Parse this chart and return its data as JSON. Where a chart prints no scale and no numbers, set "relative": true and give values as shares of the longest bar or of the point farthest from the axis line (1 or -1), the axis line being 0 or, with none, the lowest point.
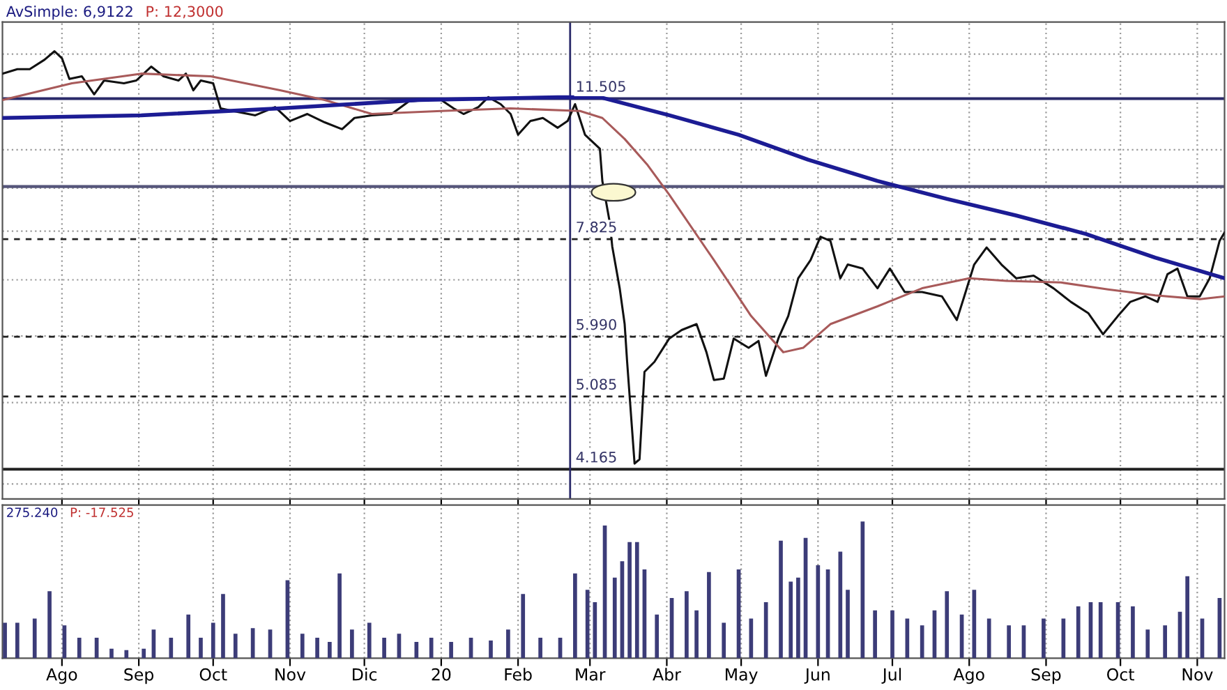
{
  "chart_data": [
    {
      "type": "line",
      "log": "y",
      "grid": true,
      "tick_labels": false,
      "annotations": [
        "AvSimple: 6,9122",
        "P: 12,3000"
      ],
      "xlim": [
        "2019-07-08",
        "2020-11-12"
      ],
      "ylim": [
        3.84,
        14.19
      ],
      "xticks": [
        {
          "value": "2019-08-01",
          "label": null
        },
        {
          "value": "2019-09-01",
          "label": null
        },
        {
          "value": "2019-10-01",
          "label": null
        },
        {
          "value": "2019-11-01",
          "label": null
        },
        {
          "value": "2019-12-01",
          "label": null
        },
        {
          "value": "2020-01-01",
          "label": null
        },
        {
          "value": "2020-02-01",
          "label": null
        },
        {
          "value": "2020-03-01",
          "label": null
        },
        {
          "value": "2020-04-01",
          "label": null
        },
        {
          "value": "2020-05-01",
          "label": null
        },
        {
          "value": "2020-06-01",
          "label": null
        },
        {
          "value": "2020-07-01",
          "label": null
        },
        {
          "value": "2020-08-01",
          "label": null
        },
        {
          "value": "2020-09-01",
          "label": null
        },
        {
          "value": "2020-10-01",
          "label": null
        },
        {
          "value": "2020-11-01",
          "label": null
        }
      ],
      "yticks": [
        {
          "value": 4,
          "label": null
        },
        {
          "value": 5,
          "label": null
        },
        {
          "value": 6,
          "label": null
        },
        {
          "value": 7,
          "label": null
        },
        {
          "value": 8,
          "label": null
        },
        {
          "value": 9,
          "label": null
        },
        {
          "value": 10,
          "label": null
        },
        {
          "value": 11.5,
          "label": null
        },
        {
          "value": 13,
          "label": null
        }
      ],
      "ref_lines": [
        {
          "axis": "y",
          "value": 11.505,
          "label": "11.505",
          "color": "#2a2a6a",
          "line_style": "solid"
        },
        {
          "axis": "y",
          "value": 9.04,
          "color": "#55557a",
          "line_style": "solid"
        },
        {
          "axis": "y",
          "value": 7.825,
          "label": "7.825",
          "color": "#222222",
          "line_style": "dashed"
        },
        {
          "axis": "y",
          "value": 5.99,
          "label": "5.990",
          "color": "#222222",
          "line_style": "dashed"
        },
        {
          "axis": "y",
          "value": 5.085,
          "label": "5.085",
          "color": "#222222",
          "line_style": "dashed"
        },
        {
          "axis": "y",
          "value": 4.165,
          "label": "4.165",
          "color": "#222222",
          "line_style": "solid"
        },
        {
          "axis": "x",
          "value": "2020-02-22",
          "color": "#2a2a6a",
          "line_style": "solid"
        }
      ],
      "series": [
        {
          "color": "#111111",
          "x": [
            "2019-07-08",
            "2019-07-14",
            "2019-07-19",
            "2019-07-25",
            "2019-07-29",
            "2019-08-01",
            "2019-08-04",
            "2019-08-09",
            "2019-08-14",
            "2019-08-18",
            "2019-08-26",
            "2019-08-31",
            "2019-09-06",
            "2019-09-11",
            "2019-09-17",
            "2019-09-20",
            "2019-09-23",
            "2019-09-26",
            "2019-10-01",
            "2019-10-04",
            "2019-10-09",
            "2019-10-18",
            "2019-10-26",
            "2019-11-01",
            "2019-11-08",
            "2019-11-15",
            "2019-11-22",
            "2019-11-27",
            "2019-12-04",
            "2019-12-12",
            "2019-12-19",
            "2019-12-27",
            "2020-01-01",
            "2020-01-06",
            "2020-01-10",
            "2020-01-16",
            "2020-01-20",
            "2020-01-25",
            "2020-01-29",
            "2020-02-01",
            "2020-02-06",
            "2020-02-11",
            "2020-02-17",
            "2020-02-21",
            "2020-02-24",
            "2020-02-28",
            "2020-03-05",
            "2020-03-06",
            "2020-03-09",
            "2020-03-10",
            "2020-03-13",
            "2020-03-15",
            "2020-03-16",
            "2020-03-19",
            "2020-03-21",
            "2020-03-23",
            "2020-03-27",
            "2020-04-02",
            "2020-04-07",
            "2020-04-13",
            "2020-04-17",
            "2020-04-20",
            "2020-04-24",
            "2020-04-28",
            "2020-05-04",
            "2020-05-08",
            "2020-05-11",
            "2020-05-16",
            "2020-05-20",
            "2020-05-24",
            "2020-05-29",
            "2020-06-02",
            "2020-06-06",
            "2020-06-10",
            "2020-06-13",
            "2020-06-19",
            "2020-06-25",
            "2020-06-30",
            "2020-07-06",
            "2020-07-13",
            "2020-07-21",
            "2020-07-27",
            "2020-07-30",
            "2020-08-03",
            "2020-08-08",
            "2020-08-14",
            "2020-08-20",
            "2020-08-27",
            "2020-09-04",
            "2020-09-11",
            "2020-09-18",
            "2020-09-24",
            "2020-09-30",
            "2020-10-05",
            "2020-10-11",
            "2020-10-16",
            "2020-10-20",
            "2020-10-24",
            "2020-10-28",
            "2020-11-02",
            "2020-11-06",
            "2020-11-10",
            "2020-11-12"
          ],
          "values": [
            12.32,
            12.47,
            12.47,
            12.8,
            13.1,
            12.85,
            12.14,
            12.23,
            11.64,
            12.09,
            12.0,
            12.09,
            12.56,
            12.23,
            12.09,
            12.32,
            11.77,
            12.09,
            12.0,
            11.2,
            11.12,
            10.99,
            11.24,
            10.82,
            11.03,
            10.78,
            10.58,
            10.91,
            10.99,
            11.03,
            11.42,
            11.46,
            11.46,
            11.2,
            11.03,
            11.24,
            11.55,
            11.33,
            11.03,
            10.42,
            10.82,
            10.91,
            10.62,
            10.82,
            11.33,
            10.42,
            10.03,
            9.18,
            8.19,
            7.67,
            6.84,
            6.2,
            5.59,
            4.23,
            4.28,
            5.44,
            5.59,
            5.96,
            6.1,
            6.2,
            5.74,
            5.32,
            5.34,
            5.96,
            5.81,
            5.92,
            5.38,
            5.96,
            6.34,
            7.03,
            7.39,
            7.88,
            7.79,
            7.03,
            7.3,
            7.22,
            6.84,
            7.22,
            6.77,
            6.77,
            6.69,
            6.27,
            6.69,
            7.3,
            7.65,
            7.3,
            7.03,
            7.08,
            6.84,
            6.59,
            6.39,
            6.03,
            6.34,
            6.59,
            6.69,
            6.59,
            7.11,
            7.22,
            6.69,
            6.69,
            7.03,
            7.79,
            7.97
          ]
        },
        {
          "color": "#a85a5a",
          "x": [
            "2019-07-08",
            "2019-08-05",
            "2019-09-02",
            "2019-09-30",
            "2019-10-28",
            "2019-11-15",
            "2019-12-04",
            "2020-01-01",
            "2020-01-29",
            "2020-02-26",
            "2020-03-06",
            "2020-03-15",
            "2020-03-24",
            "2020-04-02",
            "2020-04-20",
            "2020-05-05",
            "2020-05-18",
            "2020-05-26",
            "2020-06-06",
            "2020-06-25",
            "2020-07-13",
            "2020-08-01",
            "2020-08-16",
            "2020-09-07",
            "2020-09-26",
            "2020-10-15",
            "2020-11-02",
            "2020-11-12"
          ],
          "values": [
            11.46,
            12.0,
            12.32,
            12.23,
            11.77,
            11.46,
            11.03,
            11.12,
            11.2,
            11.12,
            10.91,
            10.3,
            9.61,
            8.84,
            7.39,
            6.34,
            5.74,
            5.81,
            6.2,
            6.51,
            6.84,
            7.03,
            6.98,
            6.95,
            6.82,
            6.71,
            6.64,
            6.69
          ]
        },
        {
          "color": "#1c1c94",
          "x": [
            "2019-07-08",
            "2019-09-02",
            "2019-10-28",
            "2019-12-23",
            "2020-02-17",
            "2020-03-05",
            "2020-04-02",
            "2020-04-30",
            "2020-05-28",
            "2020-06-25",
            "2020-07-23",
            "2020-08-20",
            "2020-09-17",
            "2020-10-15",
            "2020-11-12"
          ],
          "values": [
            10.91,
            10.99,
            11.2,
            11.46,
            11.55,
            11.55,
            10.99,
            10.42,
            9.73,
            9.18,
            8.74,
            8.35,
            7.94,
            7.44,
            7.03
          ]
        }
      ]
    },
    {
      "type": "bar",
      "relative": true,
      "grid": "x",
      "color": "#3c3c78",
      "annotations": [
        "275.240",
        "P: -17.525"
      ],
      "xlim": [
        "2019-07-08",
        "2020-11-12"
      ],
      "xticks": [
        {
          "value": "2019-08-01",
          "label": "Ago"
        },
        {
          "value": "2019-09-01",
          "label": "Sep"
        },
        {
          "value": "2019-10-01",
          "label": "Oct"
        },
        {
          "value": "2019-11-01",
          "label": "Nov"
        },
        {
          "value": "2019-12-01",
          "label": "Dic"
        },
        {
          "value": "2020-01-01",
          "label": "20"
        },
        {
          "value": "2020-02-01",
          "label": "Feb"
        },
        {
          "value": "2020-03-01",
          "label": "Mar"
        },
        {
          "value": "2020-04-01",
          "label": "Abr"
        },
        {
          "value": "2020-05-01",
          "label": "May"
        },
        {
          "value": "2020-06-01",
          "label": "Jun"
        },
        {
          "value": "2020-07-01",
          "label": "Jul"
        },
        {
          "value": "2020-08-01",
          "label": "Ago"
        },
        {
          "value": "2020-09-01",
          "label": "Sep"
        },
        {
          "value": "2020-10-01",
          "label": "Oct"
        },
        {
          "value": "2020-11-01",
          "label": "Nov"
        }
      ],
      "x": [
        "2019-07-09",
        "2019-07-14",
        "2019-07-21",
        "2019-07-27",
        "2019-08-02",
        "2019-08-08",
        "2019-08-15",
        "2019-08-21",
        "2019-08-27",
        "2019-09-03",
        "2019-09-07",
        "2019-09-14",
        "2019-09-21",
        "2019-09-26",
        "2019-10-01",
        "2019-10-05",
        "2019-10-10",
        "2019-10-17",
        "2019-10-24",
        "2019-10-31",
        "2019-11-06",
        "2019-11-12",
        "2019-11-17",
        "2019-11-21",
        "2019-11-26",
        "2019-12-03",
        "2019-12-09",
        "2019-12-15",
        "2019-12-22",
        "2019-12-28",
        "2020-01-05",
        "2020-01-13",
        "2020-01-21",
        "2020-01-28",
        "2020-02-03",
        "2020-02-10",
        "2020-02-18",
        "2020-02-24",
        "2020-02-29",
        "2020-03-03",
        "2020-03-07",
        "2020-03-11",
        "2020-03-14",
        "2020-03-17",
        "2020-03-20",
        "2020-03-23",
        "2020-03-28",
        "2020-04-03",
        "2020-04-09",
        "2020-04-13",
        "2020-04-18",
        "2020-04-24",
        "2020-04-30",
        "2020-05-05",
        "2020-05-11",
        "2020-05-17",
        "2020-05-21",
        "2020-05-24",
        "2020-05-27",
        "2020-06-01",
        "2020-06-05",
        "2020-06-10",
        "2020-06-13",
        "2020-06-19",
        "2020-06-24",
        "2020-07-01",
        "2020-07-07",
        "2020-07-13",
        "2020-07-18",
        "2020-07-23",
        "2020-07-29",
        "2020-08-03",
        "2020-08-09",
        "2020-08-17",
        "2020-08-23",
        "2020-08-31",
        "2020-09-08",
        "2020-09-14",
        "2020-09-19",
        "2020-09-23",
        "2020-09-30",
        "2020-10-06",
        "2020-10-12",
        "2020-10-19",
        "2020-10-25",
        "2020-10-28",
        "2020-11-03",
        "2020-11-10"
      ],
      "values": [
        0.26,
        0.26,
        0.29,
        0.49,
        0.24,
        0.15,
        0.15,
        0.07,
        0.06,
        0.07,
        0.21,
        0.15,
        0.32,
        0.15,
        0.26,
        0.47,
        0.18,
        0.22,
        0.21,
        0.57,
        0.18,
        0.15,
        0.12,
        0.62,
        0.21,
        0.26,
        0.15,
        0.18,
        0.12,
        0.15,
        0.12,
        0.15,
        0.13,
        0.21,
        0.47,
        0.15,
        0.15,
        0.62,
        0.5,
        0.41,
        0.97,
        0.59,
        0.71,
        0.85,
        0.85,
        0.65,
        0.32,
        0.44,
        0.49,
        0.35,
        0.63,
        0.26,
        0.65,
        0.29,
        0.41,
        0.86,
        0.56,
        0.59,
        0.88,
        0.68,
        0.65,
        0.78,
        0.5,
        1.0,
        0.35,
        0.35,
        0.29,
        0.24,
        0.35,
        0.49,
        0.32,
        0.5,
        0.29,
        0.24,
        0.24,
        0.29,
        0.29,
        0.38,
        0.41,
        0.41,
        0.41,
        0.38,
        0.21,
        0.24,
        0.34,
        0.6,
        0.29,
        0.44
      ]
    }
  ]
}
